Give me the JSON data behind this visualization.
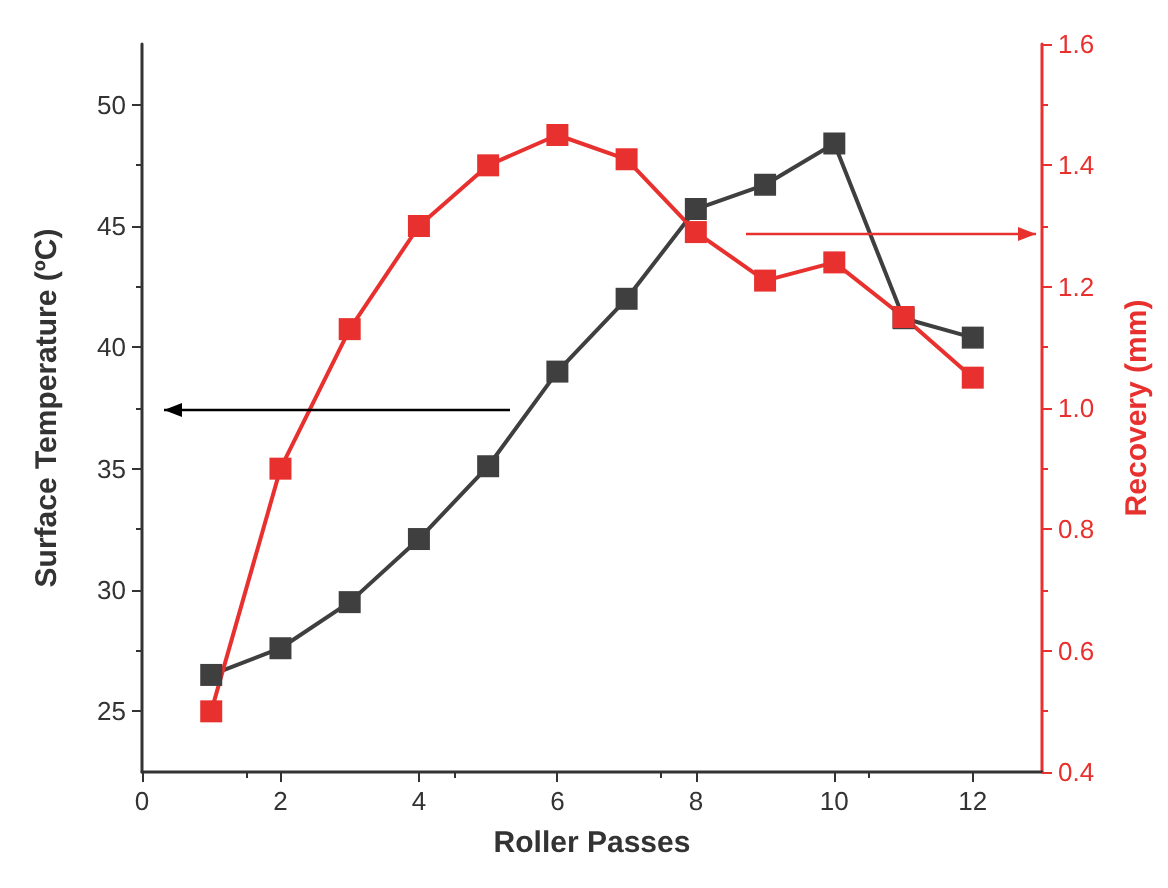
{
  "chart_data": {
    "type": "line",
    "xlabel": "Roller Passes",
    "ylabel": "Surface Temperature (ºC)",
    "y2label": "Recovery (mm)",
    "x": [
      1,
      2,
      3,
      4,
      5,
      6,
      7,
      8,
      9,
      10,
      11,
      12
    ],
    "series": [
      {
        "color": "#3f3f3f",
        "values": [
          26.5,
          27.6,
          29.5,
          32.1,
          35.1,
          39.0,
          42.0,
          45.7,
          46.7,
          48.4,
          41.2,
          40.4
        ]
      },
      {
        "color": "#e8312f",
        "axis": "y2",
        "values": [
          0.5,
          0.9,
          1.13,
          1.3,
          1.4,
          1.45,
          1.41,
          1.29,
          1.21,
          1.24,
          1.15,
          1.05
        ]
      }
    ],
    "xlim": [
      0,
      13
    ],
    "xticks": [
      0,
      2,
      4,
      6,
      8,
      10,
      12
    ],
    "ylim": [
      22.5,
      52.5
    ],
    "yticks": [
      25,
      30,
      35,
      40,
      45,
      50
    ],
    "y2lim": [
      0.4,
      1.6
    ],
    "y2ticks": [
      0.4,
      0.6,
      0.8,
      {
        "value": 1,
        "label": "1.0"
      },
      1.2,
      1.4,
      1.6
    ],
    "marker": "square",
    "line_style": "solid",
    "grid": false
  }
}
